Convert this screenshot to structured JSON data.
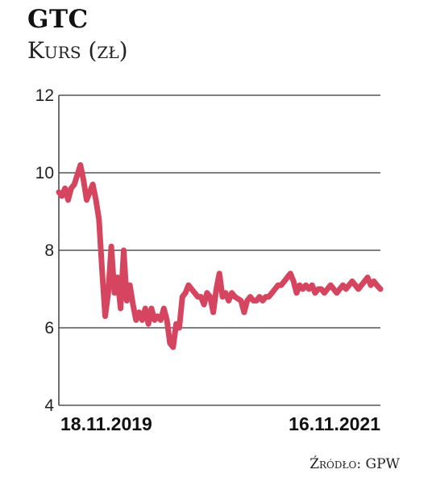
{
  "header": {
    "title": "GTC",
    "subtitle": "Kurs (zł)"
  },
  "source": "Źródło: GPW",
  "chart_data": {
    "type": "line",
    "ylim": [
      4,
      12
    ],
    "yticks": [
      "4",
      "6",
      "8",
      "10",
      "12"
    ],
    "grid": true,
    "xlim": [
      "2019-11-18",
      "2021-11-16"
    ],
    "x_tick_labels": [
      "18.11.2019",
      "16.11.2021"
    ],
    "line_color": "#d5455f",
    "series": [
      {
        "x": [
          "2019-11-18",
          "2019-11-25",
          "2019-12-02",
          "2019-12-09",
          "2019-12-16",
          "2019-12-23",
          "2020-01-06",
          "2020-01-13",
          "2020-01-20",
          "2020-01-27",
          "2020-02-03",
          "2020-02-10",
          "2020-02-17",
          "2020-02-24",
          "2020-03-02",
          "2020-03-09",
          "2020-03-16",
          "2020-03-23",
          "2020-03-30",
          "2020-04-06",
          "2020-04-13",
          "2020-04-20",
          "2020-04-27",
          "2020-05-04",
          "2020-05-11",
          "2020-05-18",
          "2020-05-25",
          "2020-06-01",
          "2020-06-08",
          "2020-06-15",
          "2020-06-22",
          "2020-06-29",
          "2020-07-06",
          "2020-07-13",
          "2020-07-20",
          "2020-07-27",
          "2020-08-03",
          "2020-08-10",
          "2020-08-17",
          "2020-08-24",
          "2020-08-31",
          "2020-09-07",
          "2020-09-14",
          "2020-09-21",
          "2020-09-28",
          "2020-10-05",
          "2020-10-12",
          "2020-10-19",
          "2020-10-26",
          "2020-11-02",
          "2020-11-09",
          "2020-11-16",
          "2020-11-23",
          "2020-11-30",
          "2020-12-07",
          "2020-12-14",
          "2020-12-21",
          "2021-01-04",
          "2021-01-11",
          "2021-01-18",
          "2021-01-25",
          "2021-02-01",
          "2021-02-08",
          "2021-02-15",
          "2021-02-22",
          "2021-03-01",
          "2021-03-08",
          "2021-03-15",
          "2021-03-22",
          "2021-03-29",
          "2021-04-05",
          "2021-04-12",
          "2021-04-19",
          "2021-04-26",
          "2021-05-03",
          "2021-05-10",
          "2021-05-17",
          "2021-05-24",
          "2021-05-31",
          "2021-06-07",
          "2021-06-14",
          "2021-06-21",
          "2021-06-28",
          "2021-07-05",
          "2021-07-12",
          "2021-07-19",
          "2021-07-26",
          "2021-08-02",
          "2021-08-09",
          "2021-08-16",
          "2021-08-23",
          "2021-08-30",
          "2021-09-06",
          "2021-09-13",
          "2021-09-20",
          "2021-09-27",
          "2021-10-04",
          "2021-10-11",
          "2021-10-18",
          "2021-10-25",
          "2021-11-01",
          "2021-11-08",
          "2021-11-16"
        ],
        "values": [
          9.5,
          9.4,
          9.6,
          9.3,
          9.6,
          9.7,
          10.2,
          9.8,
          9.3,
          9.5,
          9.7,
          9.3,
          8.8,
          7.5,
          6.3,
          6.9,
          8.1,
          6.9,
          7.3,
          6.5,
          8.0,
          6.7,
          7.1,
          6.6,
          6.2,
          6.4,
          6.2,
          6.5,
          6.1,
          6.5,
          6.2,
          6.3,
          6.2,
          6.5,
          6.2,
          5.6,
          5.5,
          6.1,
          6.0,
          6.8,
          6.9,
          7.1,
          7.0,
          6.9,
          6.8,
          6.8,
          6.6,
          6.9,
          6.8,
          6.4,
          7.0,
          7.4,
          6.8,
          6.9,
          6.7,
          6.9,
          6.8,
          6.7,
          6.4,
          6.7,
          6.8,
          6.7,
          6.7,
          6.8,
          6.7,
          6.8,
          6.8,
          6.9,
          7.0,
          7.1,
          7.1,
          7.2,
          7.3,
          7.4,
          7.2,
          6.9,
          7.1,
          7.0,
          7.1,
          7.0,
          7.1,
          6.9,
          7.0,
          7.0,
          6.9,
          7.0,
          7.1,
          7.0,
          6.9,
          7.0,
          7.1,
          7.0,
          7.1,
          7.2,
          7.1,
          7.0,
          7.1,
          7.2,
          7.3,
          7.1,
          7.2,
          7.1,
          7.0
        ]
      }
    ]
  }
}
